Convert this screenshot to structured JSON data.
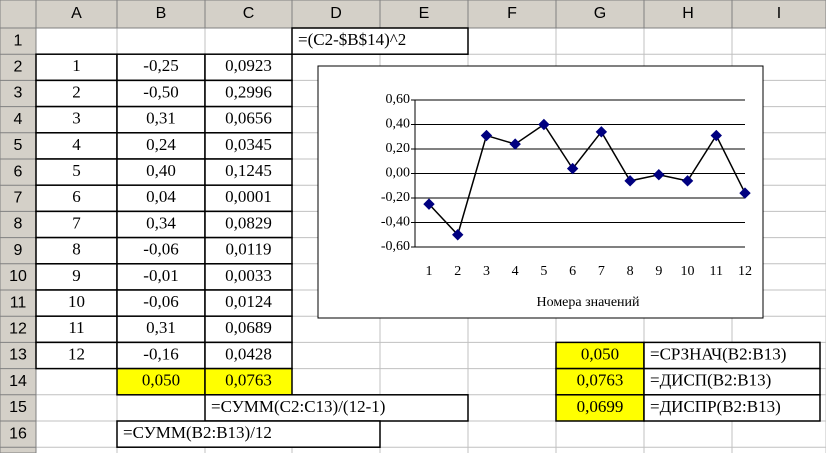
{
  "sheet": {
    "column_headers": [
      "A",
      "B",
      "C",
      "D",
      "E",
      "F",
      "G",
      "H",
      "I"
    ],
    "row_headers": [
      "1",
      "2",
      "3",
      "4",
      "5",
      "6",
      "7",
      "8",
      "9",
      "10",
      "11",
      "12",
      "13",
      "14",
      "15",
      "16"
    ],
    "col_a": [
      "1",
      "2",
      "3",
      "4",
      "5",
      "6",
      "7",
      "8",
      "9",
      "10",
      "11",
      "12"
    ],
    "col_b": [
      "-0,25",
      "-0,50",
      "0,31",
      "0,24",
      "0,40",
      "0,04",
      "0,34",
      "-0,06",
      "-0,01",
      "-0,06",
      "0,31",
      "-0,16"
    ],
    "col_c": [
      "0,0923",
      "0,2996",
      "0,0656",
      "0,0345",
      "0,1245",
      "0,0001",
      "0,0829",
      "0,0119",
      "0,0033",
      "0,0124",
      "0,0689",
      "0,0428"
    ],
    "totals": [
      "0,050",
      "0,0763"
    ],
    "formulas": [
      "=(C2-$B$14)^2",
      "=СУММ(C2:C13)/(12-1)",
      "=СУММ(B2:B13)/12"
    ],
    "stats": [
      {
        "value": "0,050",
        "formula": "=СРЗНАЧ(B2:B13)"
      },
      {
        "value": "0,0763",
        "formula": "=ДИСП(B2:B13)"
      },
      {
        "value": "0,0699",
        "formula": "=ДИСПР(B2:B13)"
      }
    ]
  },
  "chart_data": {
    "type": "line",
    "x_label": "Номера значений",
    "categories": [
      "1",
      "2",
      "3",
      "4",
      "5",
      "6",
      "7",
      "8",
      "9",
      "10",
      "11",
      "12"
    ],
    "values": [
      -0.25,
      -0.5,
      0.31,
      0.24,
      0.4,
      0.04,
      0.34,
      -0.06,
      -0.01,
      -0.06,
      0.31,
      -0.16
    ],
    "color": "#000080",
    "line_color": "#000000",
    "ylim": [
      -0.6,
      0.6
    ],
    "yticks": [
      {
        "value": -0.6,
        "label": "-0,60"
      },
      {
        "value": -0.4,
        "label": "-0,40"
      },
      {
        "value": -0.2,
        "label": "-0,20"
      },
      {
        "value": 0,
        "label": "0,00"
      },
      {
        "value": 0.2,
        "label": "0,20"
      },
      {
        "value": 0.4,
        "label": "0,40"
      },
      {
        "value": 0.6,
        "label": "0,60"
      }
    ],
    "grid": true
  }
}
